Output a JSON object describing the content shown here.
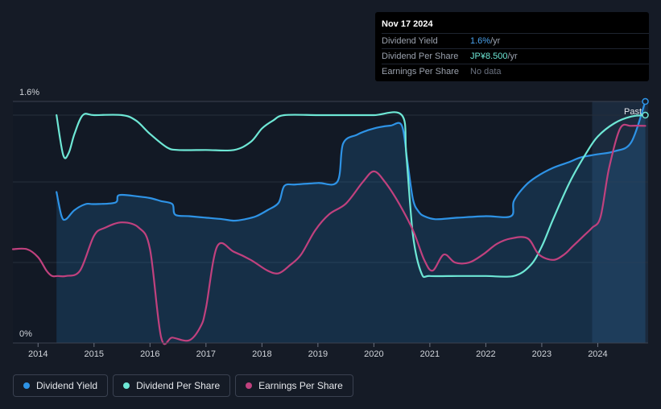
{
  "tooltip": {
    "date": "Nov 17 2024",
    "rows": [
      {
        "label": "Dividend Yield",
        "value": "1.6%",
        "unit": " /yr"
      },
      {
        "label": "Dividend Per Share",
        "value": "JP¥8.500",
        "unit": " /yr"
      },
      {
        "label": "Earnings Per Share",
        "value": "No data",
        "unit": ""
      }
    ]
  },
  "past_label": "Past",
  "legend": [
    {
      "label": "Dividend Yield",
      "color": "#2e93e6"
    },
    {
      "label": "Dividend Per Share",
      "color": "#6ee7d5"
    },
    {
      "label": "Earnings Per Share",
      "color": "#c0417e"
    }
  ],
  "chart_data": {
    "type": "line",
    "ylim_label_top": "1.6%",
    "ylim_label_bottom": "0%",
    "ylim": [
      0,
      1.6
    ],
    "xlim": [
      2013.55,
      2024.9
    ],
    "x_ticks": [
      "2014",
      "2015",
      "2016",
      "2017",
      "2018",
      "2019",
      "2020",
      "2021",
      "2022",
      "2023",
      "2024"
    ],
    "past_region_start": 2023.9,
    "series": [
      {
        "name": "Dividend Yield",
        "unit": "%",
        "color": "#2e93e6",
        "fill": true,
        "x": [
          2014.33,
          2014.42,
          2014.5,
          2014.65,
          2014.85,
          2015.0,
          2015.38,
          2015.45,
          2015.8,
          2016.0,
          2016.2,
          2016.4,
          2016.45,
          2016.7,
          2017.0,
          2017.3,
          2017.5,
          2017.7,
          2017.9,
          2018.1,
          2018.3,
          2018.4,
          2018.6,
          2019.0,
          2019.35,
          2019.45,
          2019.7,
          2019.9,
          2020.1,
          2020.3,
          2020.5,
          2020.6,
          2020.7,
          2020.8,
          2020.9,
          2021.1,
          2021.5,
          2022.0,
          2022.45,
          2022.5,
          2022.7,
          2022.9,
          2023.2,
          2023.5,
          2023.7,
          2024.0,
          2024.3,
          2024.6,
          2024.85
        ],
        "y": [
          1.0,
          0.84,
          0.82,
          0.88,
          0.92,
          0.92,
          0.93,
          0.98,
          0.97,
          0.96,
          0.94,
          0.92,
          0.85,
          0.84,
          0.83,
          0.82,
          0.81,
          0.82,
          0.84,
          0.88,
          0.93,
          1.04,
          1.05,
          1.06,
          1.07,
          1.32,
          1.38,
          1.41,
          1.43,
          1.44,
          1.44,
          1.2,
          0.95,
          0.87,
          0.84,
          0.82,
          0.83,
          0.84,
          0.84,
          0.94,
          1.04,
          1.1,
          1.16,
          1.2,
          1.23,
          1.25,
          1.27,
          1.33,
          1.6
        ]
      },
      {
        "name": "Dividend Per Share",
        "unit": "JP¥",
        "color": "#6ee7d5",
        "fill": false,
        "x": [
          2014.33,
          2014.45,
          2014.55,
          2014.65,
          2014.8,
          2015.0,
          2015.5,
          2015.75,
          2016.0,
          2016.3,
          2016.5,
          2017.0,
          2017.5,
          2017.8,
          2018.0,
          2018.2,
          2018.4,
          2019.0,
          2019.5,
          2020.0,
          2020.5,
          2020.58,
          2020.7,
          2020.85,
          2021.0,
          2021.5,
          2022.0,
          2022.5,
          2022.8,
          2023.0,
          2023.2,
          2023.5,
          2023.8,
          2024.0,
          2024.3,
          2024.6,
          2024.85
        ],
        "y": [
          8.5,
          7.0,
          7.1,
          7.8,
          8.5,
          8.5,
          8.5,
          8.3,
          7.8,
          7.3,
          7.2,
          7.2,
          7.2,
          7.5,
          8.0,
          8.3,
          8.5,
          8.5,
          8.5,
          8.5,
          8.5,
          7.0,
          4.0,
          2.6,
          2.5,
          2.5,
          2.5,
          2.5,
          2.9,
          3.6,
          4.6,
          6.0,
          7.1,
          7.7,
          8.2,
          8.45,
          8.5
        ]
      },
      {
        "name": "Earnings Per Share",
        "unit": "JP¥",
        "color": "#c0417e",
        "fill": false,
        "x": [
          2013.55,
          2013.8,
          2014.0,
          2014.15,
          2014.25,
          2014.35,
          2014.5,
          2014.75,
          2015.0,
          2015.2,
          2015.5,
          2015.8,
          2016.0,
          2016.2,
          2016.4,
          2016.7,
          2016.9,
          2017.0,
          2017.2,
          2017.5,
          2017.8,
          2018.1,
          2018.3,
          2018.5,
          2018.7,
          2018.95,
          2019.2,
          2019.5,
          2019.8,
          2020.0,
          2020.2,
          2020.45,
          2020.7,
          2020.9,
          2021.05,
          2021.25,
          2021.45,
          2021.7,
          2021.95,
          2022.2,
          2022.45,
          2022.75,
          2022.95,
          2023.2,
          2023.4,
          2023.55,
          2023.75,
          2023.9,
          2024.05,
          2024.2,
          2024.4,
          2024.6,
          2024.85
        ],
        "y": [
          3.5,
          3.5,
          3.2,
          2.7,
          2.5,
          2.5,
          2.5,
          2.7,
          4.0,
          4.3,
          4.5,
          4.3,
          3.5,
          0.2,
          0.2,
          0.1,
          0.6,
          1.3,
          3.6,
          3.4,
          3.1,
          2.7,
          2.6,
          2.9,
          3.3,
          4.2,
          4.8,
          5.2,
          6.0,
          6.4,
          6.0,
          5.2,
          4.2,
          3.1,
          2.7,
          3.3,
          3.0,
          3.0,
          3.3,
          3.7,
          3.9,
          3.9,
          3.3,
          3.1,
          3.3,
          3.6,
          4.0,
          4.3,
          4.7,
          6.5,
          8.0,
          8.1,
          8.1
        ]
      }
    ]
  }
}
